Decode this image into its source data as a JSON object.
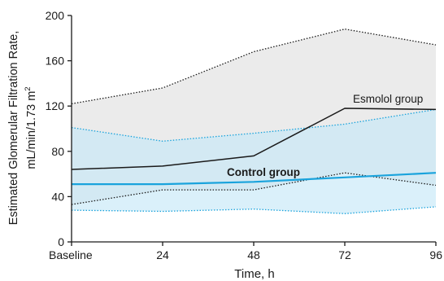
{
  "chart_data": {
    "type": "line",
    "x": [
      "Baseline",
      "24",
      "48",
      "72",
      "96"
    ],
    "xlabel": "Time, h",
    "ylabel": [
      "Estimated Glomerular Filtration Rate,",
      "mL/min/1.73 m",
      "2"
    ],
    "ylim": [
      0,
      200
    ],
    "yticks": [
      0,
      40,
      80,
      120,
      160,
      200
    ],
    "grid": false,
    "series": [
      {
        "name": "Esmolol group",
        "color": "#1a1a1a",
        "band_color": "#e4e4e4",
        "values": [
          64,
          67,
          76,
          118,
          117
        ],
        "upper": [
          122,
          136,
          168,
          188,
          174
        ],
        "lower": [
          33,
          46,
          46,
          61,
          50
        ]
      },
      {
        "name": "Control group",
        "color": "#1aa3dc",
        "band_color": "#c6e8f8",
        "values": [
          51,
          51,
          53,
          57,
          61
        ],
        "upper": [
          101,
          89,
          96,
          104,
          117
        ],
        "lower": [
          28,
          27,
          29,
          25,
          31
        ]
      }
    ]
  }
}
